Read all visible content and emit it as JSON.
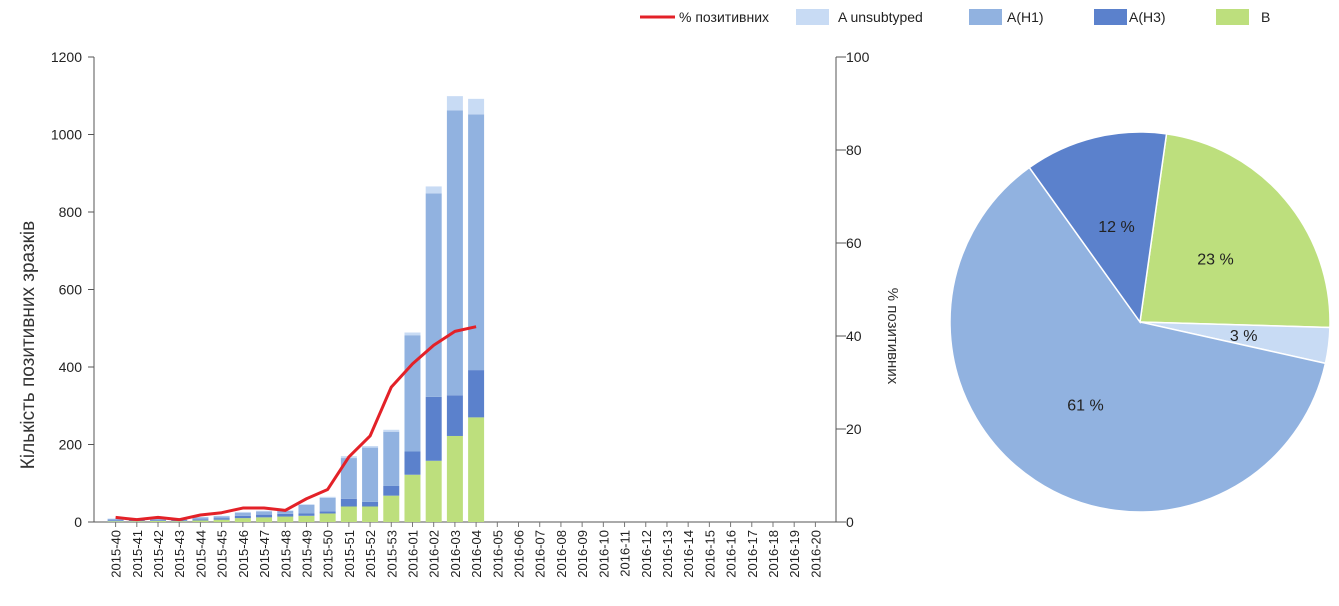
{
  "chart_data": [
    {
      "type": "bar",
      "stacked": true,
      "categories": [
        "2015-40",
        "2015-41",
        "2015-42",
        "2015-43",
        "2015-44",
        "2015-45",
        "2015-46",
        "2015-47",
        "2015-48",
        "2015-49",
        "2015-50",
        "2015-51",
        "2015-52",
        "2015-53",
        "2016-01",
        "2016-02",
        "2016-03",
        "2016-04",
        "2016-05",
        "2016-06",
        "2016-07",
        "2016-08",
        "2016-09",
        "2016-10",
        "2016-11",
        "2016-12",
        "2016-13",
        "2016-14",
        "2016-15",
        "2016-16",
        "2016-17",
        "2016-18",
        "2016-19",
        "2016-20"
      ],
      "series": [
        {
          "name": "B",
          "color": "#bddf7d",
          "values": [
            2,
            2,
            3,
            2,
            4,
            6,
            10,
            12,
            14,
            16,
            22,
            40,
            40,
            68,
            122,
            158,
            222,
            270,
            null,
            null,
            null,
            null,
            null,
            null,
            null,
            null,
            null,
            null,
            null,
            null,
            null,
            null,
            null,
            null
          ]
        },
        {
          "name": "A(H3)",
          "color": "#5b81cc",
          "values": [
            2,
            2,
            2,
            2,
            3,
            4,
            6,
            7,
            7,
            6,
            5,
            20,
            12,
            25,
            60,
            165,
            105,
            122,
            null,
            null,
            null,
            null,
            null,
            null,
            null,
            null,
            null,
            null,
            null,
            null,
            null,
            null,
            null,
            null
          ]
        },
        {
          "name": "A(H1)",
          "color": "#91b2e0",
          "values": [
            4,
            4,
            3,
            3,
            5,
            5,
            8,
            8,
            8,
            22,
            35,
            105,
            140,
            140,
            300,
            525,
            735,
            660,
            null,
            null,
            null,
            null,
            null,
            null,
            null,
            null,
            null,
            null,
            null,
            null,
            null,
            null,
            null,
            null
          ]
        },
        {
          "name": "A unsubtyped",
          "color": "#c8dbf4",
          "values": [
            1,
            1,
            1,
            1,
            1,
            1,
            2,
            2,
            1,
            2,
            3,
            5,
            4,
            5,
            7,
            18,
            37,
            40,
            null,
            null,
            null,
            null,
            null,
            null,
            null,
            null,
            null,
            null,
            null,
            null,
            null,
            null,
            null,
            null
          ]
        }
      ],
      "line_series": {
        "name": "% позитивних",
        "color": "#e32128",
        "values": [
          1,
          0.5,
          1,
          0.5,
          1.5,
          2,
          3,
          3,
          2.5,
          5,
          7,
          14,
          18.5,
          29,
          34,
          38,
          41,
          42,
          null,
          null,
          null,
          null,
          null,
          null,
          null,
          null,
          null,
          null,
          null,
          null,
          null,
          null,
          null,
          null
        ]
      },
      "ylabel": "Кількість позитивних зразків",
      "y2label": "% позитивних",
      "ylim": [
        0,
        1200
      ],
      "y2lim": [
        0,
        100
      ],
      "yticks": [
        "0",
        "200",
        "400",
        "600",
        "800",
        "1000",
        "1200"
      ],
      "y2ticks": [
        "0",
        "20",
        "40",
        "60",
        "80",
        "100"
      ],
      "legend_position": "top-right"
    },
    {
      "type": "pie",
      "slices": [
        {
          "name": "B",
          "value": 23,
          "label": "23 %",
          "color": "#bddf7d"
        },
        {
          "name": "A unsubtyped",
          "value": 3,
          "label": "3 %",
          "color": "#c8dbf4"
        },
        {
          "name": "A(H1)",
          "value": 61,
          "label": "61 %",
          "color": "#91b2e0"
        },
        {
          "name": "A(H3)",
          "value": 12,
          "label": "12 %",
          "color": "#5b81cc"
        }
      ]
    }
  ],
  "legend": [
    {
      "label": "% позитивних",
      "kind": "line",
      "color": "#e32128"
    },
    {
      "label": "A unsubtyped",
      "kind": "box",
      "color": "#c8dbf4"
    },
    {
      "label": "A(H1)",
      "kind": "box",
      "color": "#91b2e0"
    },
    {
      "label": "A(H3)",
      "kind": "box",
      "color": "#5b81cc"
    },
    {
      "label": "B",
      "kind": "box",
      "color": "#bddf7d"
    }
  ]
}
